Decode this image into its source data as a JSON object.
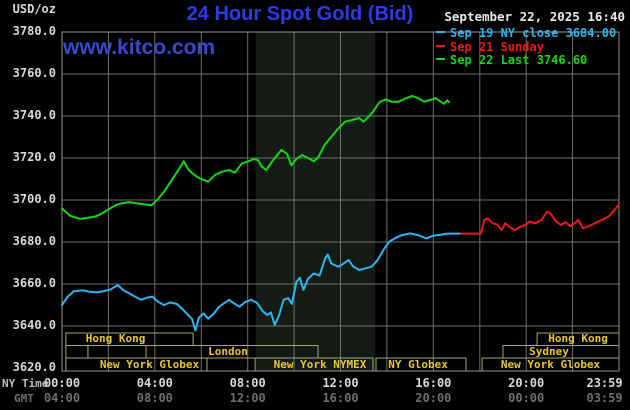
{
  "header": {
    "unit_label": "USD/oz",
    "title": "24 Hour Spot Gold (Bid)",
    "datetime": "September 22, 2025 16:40",
    "watermark": "www.kitco.com"
  },
  "legend": [
    {
      "label": "Sep 19 NY close 3684.00",
      "color_key": "cyan"
    },
    {
      "label": "Sep 21 Sunday",
      "color_key": "red"
    },
    {
      "label": "Sep 22 Last 3746.60",
      "color_key": "green"
    }
  ],
  "axes": {
    "y_unit": "USD/oz",
    "ny_label": "NY Time",
    "gmt_label": "GMT",
    "x_ticks": [
      {
        "h": 0,
        "ny": "00:00",
        "gmt": "04:00"
      },
      {
        "h": 4,
        "ny": "04:00",
        "gmt": "08:00"
      },
      {
        "h": 8,
        "ny": "08:00",
        "gmt": "12:00"
      },
      {
        "h": 12,
        "ny": "12:00",
        "gmt": "16:00"
      },
      {
        "h": 16,
        "ny": "16:00",
        "gmt": "20:00"
      },
      {
        "h": 20,
        "ny": "20:00",
        "gmt": "00:00"
      },
      {
        "h": 23.983,
        "ny": "23:59",
        "gmt": "03:59",
        "align": "right"
      }
    ]
  },
  "sessions": {
    "rows": [
      {
        "boxes": [
          {
            "label": "Hong Kong",
            "start": 0.17,
            "end": 5.65,
            "label_offset": -14
          },
          {
            "label": "Hong Kong",
            "start": 20.47,
            "end": 24,
            "label_offset": 0
          }
        ]
      },
      {
        "boxes": [
          {
            "label": "",
            "start": 0.17,
            "end": 1.12,
            "label_offset": 0
          },
          {
            "label": "",
            "start": 1.12,
            "end": 3.62,
            "label_offset": 0
          },
          {
            "label": "London",
            "start": 3.62,
            "end": 11.03,
            "label_offset": -4
          },
          {
            "label": "Sydney",
            "start": 19.0,
            "end": 24,
            "label_offset": -12
          }
        ]
      },
      {
        "boxes": [
          {
            "label": "New York Globex",
            "start": 0.17,
            "end": 6.25,
            "label_offset": 13
          },
          {
            "label": "New York NYMEX",
            "start": 8.32,
            "end": 13.4,
            "label_offset": 6
          },
          {
            "label": "NY Globex",
            "start": 13.53,
            "end": 17.41,
            "label_offset": -3
          },
          {
            "label": "New York Globex",
            "start": 18.1,
            "end": 24,
            "label_offset": 0
          }
        ]
      }
    ]
  },
  "chart_data": {
    "type": "line",
    "title": "24 Hour Spot Gold (Bid)",
    "xlabel": "NY Time (top) / GMT (bottom)",
    "ylabel": "USD/oz",
    "xlim_hours": [
      0,
      24
    ],
    "ylim": [
      3620,
      3780
    ],
    "grid": true,
    "shaded_region_hours": [
      8.35,
      13.5
    ],
    "y_axis": {
      "ticks": [
        3780,
        3760,
        3740,
        3720,
        3700,
        3680,
        3660,
        3640,
        3620
      ],
      "tick_step": 20
    },
    "series": [
      {
        "name": "Sep 19 NY close 3684.00",
        "color_key": "cyan",
        "points": [
          [
            0,
            3650
          ],
          [
            0.25,
            3654
          ],
          [
            0.5,
            3656.5
          ],
          [
            0.9,
            3657
          ],
          [
            1.2,
            3656.3
          ],
          [
            1.5,
            3656
          ],
          [
            1.8,
            3656.6
          ],
          [
            2.1,
            3657.5
          ],
          [
            2.4,
            3659.5
          ],
          [
            2.65,
            3657
          ],
          [
            2.9,
            3655.5
          ],
          [
            3.15,
            3654
          ],
          [
            3.4,
            3652.5
          ],
          [
            3.65,
            3653.5
          ],
          [
            3.9,
            3654
          ],
          [
            4.15,
            3651.5
          ],
          [
            4.4,
            3650
          ],
          [
            4.65,
            3651.2
          ],
          [
            4.95,
            3650.5
          ],
          [
            5.2,
            3648
          ],
          [
            5.45,
            3645
          ],
          [
            5.6,
            3643.5
          ],
          [
            5.75,
            3637.8
          ],
          [
            5.9,
            3644
          ],
          [
            6.1,
            3646
          ],
          [
            6.3,
            3643.5
          ],
          [
            6.55,
            3646
          ],
          [
            6.75,
            3649
          ],
          [
            7,
            3651
          ],
          [
            7.2,
            3652.5
          ],
          [
            7.45,
            3650.5
          ],
          [
            7.65,
            3649.2
          ],
          [
            7.9,
            3651.5
          ],
          [
            8.15,
            3652.5
          ],
          [
            8.4,
            3651
          ],
          [
            8.65,
            3647
          ],
          [
            8.85,
            3645.3
          ],
          [
            9,
            3646.5
          ],
          [
            9.17,
            3640.5
          ],
          [
            9.35,
            3645
          ],
          [
            9.55,
            3652.5
          ],
          [
            9.75,
            3653.3
          ],
          [
            9.9,
            3650.5
          ],
          [
            10.1,
            3661
          ],
          [
            10.25,
            3663
          ],
          [
            10.4,
            3657.2
          ],
          [
            10.6,
            3662.5
          ],
          [
            10.85,
            3665
          ],
          [
            11.1,
            3664
          ],
          [
            11.35,
            3672.5
          ],
          [
            11.45,
            3674
          ],
          [
            11.6,
            3669.8
          ],
          [
            11.9,
            3668.2
          ],
          [
            12.1,
            3669.5
          ],
          [
            12.35,
            3671.4
          ],
          [
            12.55,
            3668.3
          ],
          [
            12.8,
            3666.7
          ],
          [
            13.1,
            3667.5
          ],
          [
            13.35,
            3668.3
          ],
          [
            13.6,
            3671.4
          ],
          [
            13.85,
            3676.2
          ],
          [
            14.1,
            3680.2
          ],
          [
            14.35,
            3681.8
          ],
          [
            14.65,
            3683.3
          ],
          [
            15,
            3684.1
          ],
          [
            15.35,
            3683.3
          ],
          [
            15.7,
            3681.7
          ],
          [
            16,
            3683
          ],
          [
            16.3,
            3683.5
          ],
          [
            16.6,
            3684
          ],
          [
            17,
            3684
          ],
          [
            17.2,
            3684
          ]
        ]
      },
      {
        "name": "Sep 21 Sunday",
        "color_key": "red",
        "points": [
          [
            17.2,
            3684
          ],
          [
            18.05,
            3684
          ],
          [
            18.2,
            3690.5
          ],
          [
            18.35,
            3691.3
          ],
          [
            18.55,
            3689
          ],
          [
            18.75,
            3688.3
          ],
          [
            18.95,
            3685.7
          ],
          [
            19.1,
            3688.9
          ],
          [
            19.3,
            3687
          ],
          [
            19.5,
            3685.7
          ],
          [
            19.75,
            3687.3
          ],
          [
            19.95,
            3688.1
          ],
          [
            20.15,
            3689.7
          ],
          [
            20.4,
            3689
          ],
          [
            20.65,
            3690.5
          ],
          [
            20.9,
            3694.4
          ],
          [
            21.05,
            3693.6
          ],
          [
            21.3,
            3689.7
          ],
          [
            21.5,
            3688.1
          ],
          [
            21.7,
            3689.5
          ],
          [
            21.9,
            3687.5
          ],
          [
            22.1,
            3689
          ],
          [
            22.25,
            3690.5
          ],
          [
            22.45,
            3686.5
          ],
          [
            22.65,
            3687.3
          ],
          [
            22.95,
            3688.9
          ],
          [
            23.25,
            3690.5
          ],
          [
            23.55,
            3692.1
          ],
          [
            23.8,
            3695.2
          ],
          [
            23.98,
            3697.6
          ]
        ]
      },
      {
        "name": "Sep 22 Last 3746.60",
        "color_key": "green",
        "points": [
          [
            0,
            3696
          ],
          [
            0.35,
            3692.5
          ],
          [
            0.8,
            3691
          ],
          [
            1.1,
            3691.5
          ],
          [
            1.4,
            3692
          ],
          [
            1.7,
            3693.5
          ],
          [
            2,
            3695.5
          ],
          [
            2.3,
            3697.5
          ],
          [
            2.6,
            3698.5
          ],
          [
            2.9,
            3699
          ],
          [
            3.2,
            3698.5
          ],
          [
            3.5,
            3698
          ],
          [
            3.85,
            3697.5
          ],
          [
            4.1,
            3700
          ],
          [
            4.4,
            3704
          ],
          [
            4.7,
            3709
          ],
          [
            5,
            3714
          ],
          [
            5.25,
            3718.5
          ],
          [
            5.45,
            3714.5
          ],
          [
            5.65,
            3712.5
          ],
          [
            5.9,
            3710.5
          ],
          [
            6.3,
            3708.7
          ],
          [
            6.6,
            3712
          ],
          [
            6.9,
            3713.5
          ],
          [
            7.2,
            3714.3
          ],
          [
            7.45,
            3713
          ],
          [
            7.75,
            3717.5
          ],
          [
            8,
            3718.3
          ],
          [
            8.25,
            3719.5
          ],
          [
            8.45,
            3719
          ],
          [
            8.6,
            3716
          ],
          [
            8.8,
            3714.3
          ],
          [
            9.1,
            3719
          ],
          [
            9.45,
            3723.8
          ],
          [
            9.7,
            3722
          ],
          [
            9.88,
            3716.5
          ],
          [
            10.1,
            3719.5
          ],
          [
            10.35,
            3721.4
          ],
          [
            10.6,
            3720
          ],
          [
            10.85,
            3718.5
          ],
          [
            11.05,
            3720.5
          ],
          [
            11.3,
            3726
          ],
          [
            11.6,
            3730
          ],
          [
            11.9,
            3734
          ],
          [
            12.2,
            3737.3
          ],
          [
            12.5,
            3738.1
          ],
          [
            12.8,
            3739
          ],
          [
            13,
            3737.3
          ],
          [
            13.35,
            3741.3
          ],
          [
            13.7,
            3746.8
          ],
          [
            13.95,
            3747.9
          ],
          [
            14.2,
            3746.8
          ],
          [
            14.5,
            3746.8
          ],
          [
            14.8,
            3748.4
          ],
          [
            15.1,
            3749.5
          ],
          [
            15.35,
            3748.5
          ],
          [
            15.6,
            3746.8
          ],
          [
            15.85,
            3747.6
          ],
          [
            16.1,
            3748.5
          ],
          [
            16.3,
            3747
          ],
          [
            16.45,
            3745.8
          ],
          [
            16.6,
            3747.5
          ],
          [
            16.67,
            3746.6
          ]
        ]
      }
    ]
  },
  "colors": {
    "background": "#000000",
    "grid": "#6e6e6e",
    "plot_border": "#949494",
    "shade": "#141b14",
    "cyan": "#29b7f2",
    "red": "#f01717",
    "green": "#12d712",
    "title_blue": "#2c3bee",
    "watermark_blue": "#3a49cf",
    "axis_text": "#d9d9d9",
    "dim_text": "#6f6f6f",
    "ny_label_text": "#bfbfbf",
    "date_text": "#e9e9e9",
    "session_border": "#a9a868",
    "session_label": "#e9c72c"
  }
}
